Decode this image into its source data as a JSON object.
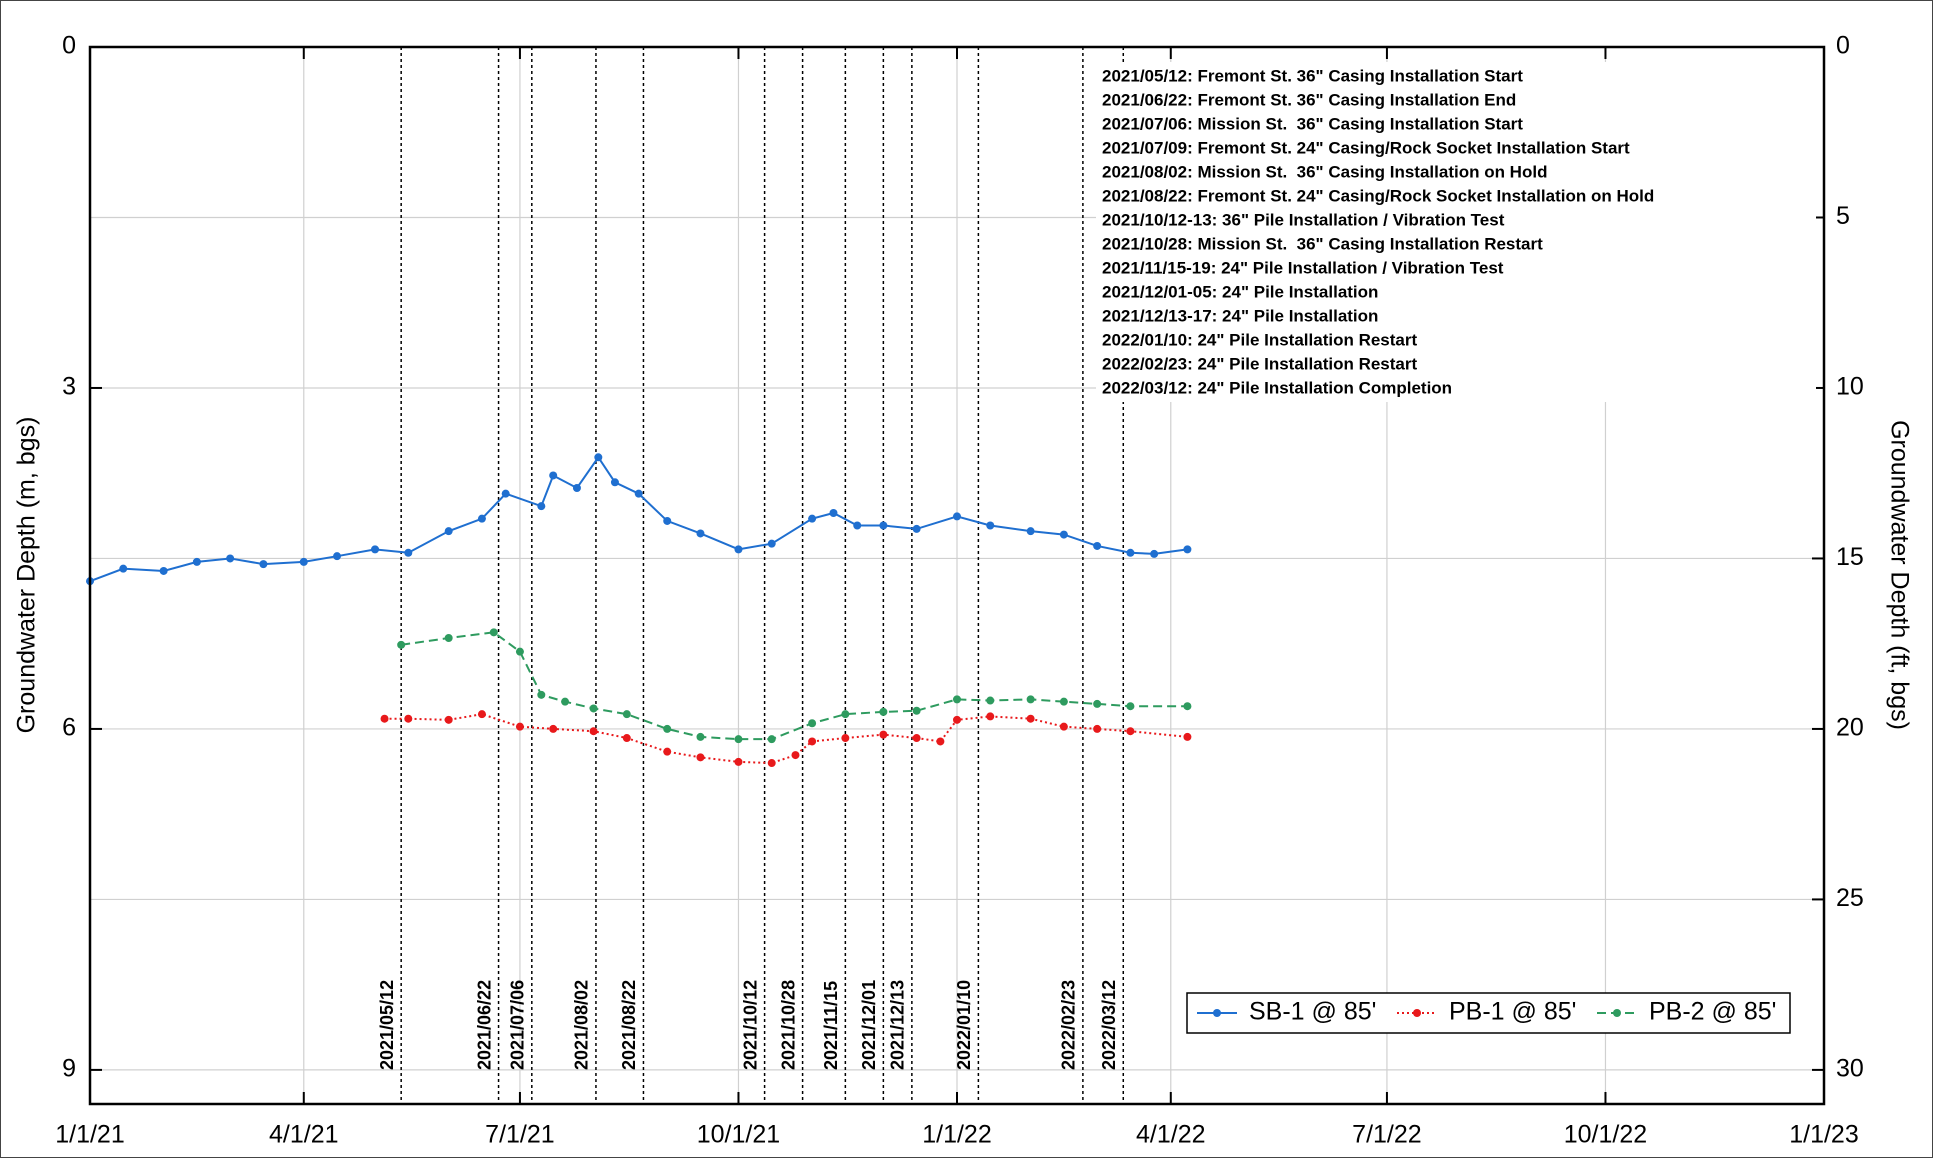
{
  "chart_data": {
    "type": "line",
    "y_label": "Groundwater Depth (m, bgs)",
    "y2_label": "Groundwater Depth (ft, bgs)",
    "xlim": [
      "2021-01-01",
      "2023-01-01"
    ],
    "xticks": [
      {
        "value": "2021-01-01",
        "label": "1/1/21"
      },
      {
        "value": "2021-04-01",
        "label": "4/1/21"
      },
      {
        "value": "2021-07-01",
        "label": "7/1/21"
      },
      {
        "value": "2021-10-01",
        "label": "10/1/21"
      },
      {
        "value": "2022-01-01",
        "label": "1/1/22"
      },
      {
        "value": "2022-04-01",
        "label": "4/1/22"
      },
      {
        "value": "2022-07-01",
        "label": "7/1/22"
      },
      {
        "value": "2022-10-01",
        "label": "10/1/22"
      },
      {
        "value": "2023-01-01",
        "label": "1/1/23"
      }
    ],
    "ylim": [
      0,
      9.3
    ],
    "yticks": [
      0,
      3,
      6,
      9
    ],
    "y2lim": [
      0,
      31
    ],
    "y2ticks": [
      0,
      5,
      10,
      15,
      20,
      25,
      30
    ],
    "y_inverted": true,
    "grid": true,
    "legend": "lower right",
    "series": [
      {
        "name": "SB-1 @ 85'",
        "color": "#1f6fd0",
        "line_style": "solid",
        "x": [
          "2021-01-01",
          "2021-01-15",
          "2021-02-01",
          "2021-02-15",
          "2021-03-01",
          "2021-03-15",
          "2021-04-01",
          "2021-04-15",
          "2021-05-01",
          "2021-05-15",
          "2021-06-01",
          "2021-06-15",
          "2021-06-25",
          "2021-07-10",
          "2021-07-15",
          "2021-07-25",
          "2021-08-03",
          "2021-08-10",
          "2021-08-20",
          "2021-09-01",
          "2021-09-15",
          "2021-10-01",
          "2021-10-15",
          "2021-11-01",
          "2021-11-10",
          "2021-11-20",
          "2021-12-01",
          "2021-12-15",
          "2022-01-01",
          "2022-01-15",
          "2022-02-01",
          "2022-02-15",
          "2022-03-01",
          "2022-03-15",
          "2022-03-25",
          "2022-04-08"
        ],
        "values": [
          4.7,
          4.59,
          4.61,
          4.53,
          4.5,
          4.55,
          4.53,
          4.48,
          4.42,
          4.45,
          4.26,
          4.15,
          3.93,
          4.04,
          3.77,
          3.88,
          3.61,
          3.83,
          3.93,
          4.17,
          4.28,
          4.42,
          4.37,
          4.15,
          4.1,
          4.21,
          4.21,
          4.24,
          4.13,
          4.21,
          4.26,
          4.29,
          4.39,
          4.45,
          4.46,
          4.42
        ]
      },
      {
        "name": "PB-1 @ 85'",
        "color": "#e8191b",
        "line_style": "dotted",
        "x": [
          "2021-05-05",
          "2021-05-15",
          "2021-06-01",
          "2021-06-15",
          "2021-07-01",
          "2021-07-15",
          "2021-08-01",
          "2021-08-15",
          "2021-09-01",
          "2021-09-15",
          "2021-10-01",
          "2021-10-15",
          "2021-10-25",
          "2021-11-01",
          "2021-11-15",
          "2021-12-01",
          "2021-12-15",
          "2021-12-25",
          "2022-01-01",
          "2022-01-15",
          "2022-02-01",
          "2022-02-15",
          "2022-03-01",
          "2022-03-15",
          "2022-04-08"
        ],
        "values": [
          5.91,
          5.91,
          5.92,
          5.87,
          5.98,
          6.0,
          6.02,
          6.08,
          6.2,
          6.25,
          6.29,
          6.3,
          6.23,
          6.11,
          6.08,
          6.05,
          6.08,
          6.11,
          5.92,
          5.89,
          5.91,
          5.98,
          6.0,
          6.02,
          6.07
        ]
      },
      {
        "name": "PB-2 @ 85'",
        "color": "#2e9b5f",
        "line_style": "dashed",
        "x": [
          "2021-05-12",
          "2021-06-01",
          "2021-06-20",
          "2021-07-01",
          "2021-07-10",
          "2021-07-20",
          "2021-08-01",
          "2021-08-15",
          "2021-09-01",
          "2021-09-15",
          "2021-10-01",
          "2021-10-15",
          "2021-11-01",
          "2021-11-15",
          "2021-12-01",
          "2021-12-15",
          "2022-01-01",
          "2022-01-15",
          "2022-02-01",
          "2022-02-15",
          "2022-03-01",
          "2022-03-15",
          "2022-04-08"
        ],
        "values": [
          5.26,
          5.2,
          5.15,
          5.32,
          5.7,
          5.76,
          5.82,
          5.87,
          6.0,
          6.07,
          6.09,
          6.09,
          5.95,
          5.87,
          5.85,
          5.84,
          5.74,
          5.75,
          5.74,
          5.76,
          5.78,
          5.8,
          5.8
        ]
      }
    ],
    "events": [
      {
        "date": "2021-05-12",
        "label": "2021/05/12"
      },
      {
        "date": "2021-06-22",
        "label": "2021/06/22"
      },
      {
        "date": "2021-07-06",
        "label": "2021/07/06"
      },
      {
        "date": "2021-08-02",
        "label": "2021/08/02"
      },
      {
        "date": "2021-08-22",
        "label": "2021/08/22"
      },
      {
        "date": "2021-10-12",
        "label": "2021/10/12"
      },
      {
        "date": "2021-10-28",
        "label": "2021/10/28"
      },
      {
        "date": "2021-11-15",
        "label": "2021/11/15"
      },
      {
        "date": "2021-12-01",
        "label": "2021/12/01"
      },
      {
        "date": "2021-12-13",
        "label": "2021/12/13"
      },
      {
        "date": "2022-01-10",
        "label": "2022/01/10"
      },
      {
        "date": "2022-02-23",
        "label": "2022/02/23"
      },
      {
        "date": "2022-03-12",
        "label": "2022/03/12"
      }
    ],
    "annotations": [
      "2021/05/12: Fremont St. 36\" Casing Installation Start",
      "2021/06/22: Fremont St. 36\" Casing Installation End",
      "2021/07/06: Mission St.  36\" Casing Installation Start",
      "2021/07/09: Fremont St. 24\" Casing/Rock Socket Installation Start",
      "2021/08/02: Mission St.  36\" Casing Installation on Hold",
      "2021/08/22: Fremont St. 24\" Casing/Rock Socket Installation on Hold",
      "2021/10/12-13: 36\" Pile Installation / Vibration Test",
      "2021/10/28: Mission St.  36\" Casing Installation Restart",
      "2021/11/15-19: 24\" Pile Installation / Vibration Test",
      "2021/12/01-05: 24\" Pile Installation",
      "2021/12/13-17: 24\" Pile Installation",
      "2022/01/10: 24\" Pile Installation Restart",
      "2022/02/23: 24\" Pile Installation Restart",
      "2022/03/12: 24\" Pile Installation Completion"
    ]
  }
}
